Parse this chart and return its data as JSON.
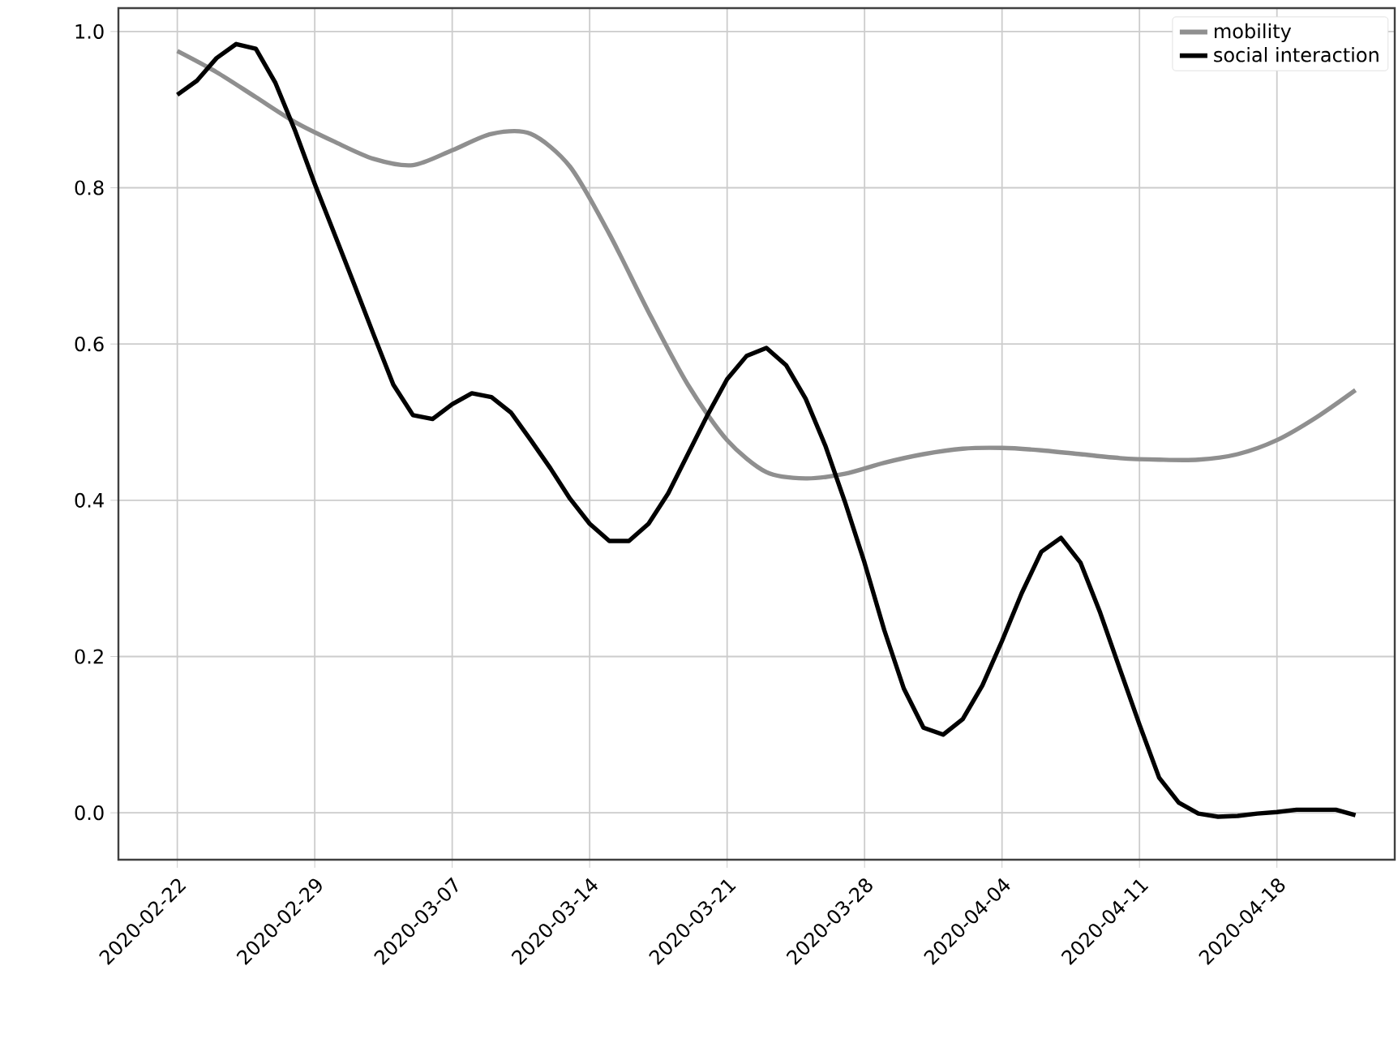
{
  "chart_data": {
    "type": "line",
    "x": [
      "2020-02-22",
      "2020-02-23",
      "2020-02-24",
      "2020-02-25",
      "2020-02-26",
      "2020-02-27",
      "2020-02-28",
      "2020-02-29",
      "2020-03-01",
      "2020-03-02",
      "2020-03-03",
      "2020-03-04",
      "2020-03-05",
      "2020-03-06",
      "2020-03-07",
      "2020-03-08",
      "2020-03-09",
      "2020-03-10",
      "2020-03-11",
      "2020-03-12",
      "2020-03-13",
      "2020-03-14",
      "2020-03-15",
      "2020-03-16",
      "2020-03-17",
      "2020-03-18",
      "2020-03-19",
      "2020-03-20",
      "2020-03-21",
      "2020-03-22",
      "2020-03-23",
      "2020-03-24",
      "2020-03-25",
      "2020-03-26",
      "2020-03-27",
      "2020-03-28",
      "2020-03-29",
      "2020-03-30",
      "2020-03-31",
      "2020-04-01",
      "2020-04-02",
      "2020-04-03",
      "2020-04-04",
      "2020-04-05",
      "2020-04-06",
      "2020-04-07",
      "2020-04-08",
      "2020-04-09",
      "2020-04-10",
      "2020-04-11",
      "2020-04-12",
      "2020-04-13",
      "2020-04-14",
      "2020-04-15",
      "2020-04-16",
      "2020-04-17",
      "2020-04-18",
      "2020-04-19",
      "2020-04-20",
      "2020-04-21",
      "2020-04-22"
    ],
    "series": [
      {
        "name": "mobility",
        "color": "#8f8f8f",
        "x": [
          "2020-02-22",
          "2020-02-24",
          "2020-02-26",
          "2020-02-28",
          "2020-03-01",
          "2020-03-03",
          "2020-03-05",
          "2020-03-07",
          "2020-03-09",
          "2020-03-11",
          "2020-03-13",
          "2020-03-15",
          "2020-03-17",
          "2020-03-19",
          "2020-03-21",
          "2020-03-23",
          "2020-03-25",
          "2020-03-27",
          "2020-03-29",
          "2020-03-31",
          "2020-04-02",
          "2020-04-04",
          "2020-04-06",
          "2020-04-08",
          "2020-04-10",
          "2020-04-12",
          "2020-04-14",
          "2020-04-16",
          "2020-04-18",
          "2020-04-20",
          "2020-04-22"
        ],
        "values": [
          0.975,
          0.948,
          0.916,
          0.884,
          0.859,
          0.837,
          0.829,
          0.848,
          0.869,
          0.869,
          0.827,
          0.741,
          0.641,
          0.548,
          0.477,
          0.436,
          0.428,
          0.434,
          0.448,
          0.459,
          0.466,
          0.467,
          0.464,
          0.459,
          0.454,
          0.452,
          0.452,
          0.459,
          0.477,
          0.506,
          0.541
        ]
      },
      {
        "name": "social interaction",
        "color": "#000000",
        "values": [
          0.919,
          0.937,
          0.966,
          0.984,
          0.978,
          0.934,
          0.873,
          0.805,
          0.741,
          0.677,
          0.612,
          0.548,
          0.509,
          0.504,
          0.523,
          0.537,
          0.532,
          0.512,
          0.477,
          0.441,
          0.402,
          0.37,
          0.348,
          0.348,
          0.37,
          0.409,
          0.459,
          0.509,
          0.555,
          0.585,
          0.595,
          0.573,
          0.53,
          0.47,
          0.398,
          0.32,
          0.234,
          0.159,
          0.109,
          0.1,
          0.12,
          0.163,
          0.22,
          0.281,
          0.334,
          0.352,
          0.32,
          0.256,
          0.184,
          0.113,
          0.045,
          0.013,
          -0.001,
          -0.005,
          -0.004,
          -0.001,
          0.001,
          0.004,
          0.004,
          0.004,
          -0.003
        ]
      }
    ],
    "xlim": [
      "2020-02-19",
      "2020-04-24"
    ],
    "xticks": [
      "2020-02-22",
      "2020-02-29",
      "2020-03-07",
      "2020-03-14",
      "2020-03-21",
      "2020-03-28",
      "2020-04-04",
      "2020-04-11",
      "2020-04-18"
    ],
    "ylim": [
      -0.06,
      1.03
    ],
    "yticks": [
      {
        "value": 0,
        "label": "0.0"
      },
      {
        "value": 0.2,
        "label": "0.2"
      },
      {
        "value": 0.4,
        "label": "0.4"
      },
      {
        "value": 0.6,
        "label": "0.6"
      },
      {
        "value": 0.8,
        "label": "0.8"
      },
      {
        "value": 1,
        "label": "1.0"
      }
    ],
    "grid": true,
    "legend": "top right",
    "marker": "none",
    "line_style": "solid"
  }
}
